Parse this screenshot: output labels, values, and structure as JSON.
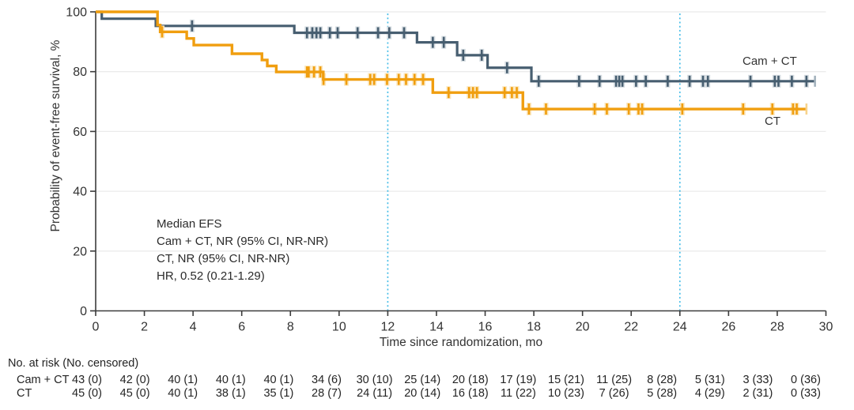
{
  "chart_data": {
    "type": "line",
    "subtype": "kaplan-meier-step",
    "title": "",
    "xlabel": "Time since randomization, mo",
    "ylabel": "Probability of event-free survival, %",
    "xlim": [
      0,
      30
    ],
    "ylim": [
      0,
      100
    ],
    "xticks": [
      0,
      2,
      4,
      6,
      8,
      10,
      12,
      14,
      16,
      18,
      20,
      22,
      24,
      26,
      28,
      30
    ],
    "yticks": [
      0,
      20,
      40,
      60,
      80,
      100
    ],
    "grid": "horizontal",
    "reference_lines_x": [
      12,
      24
    ],
    "colors": {
      "grid": "#ebebeb",
      "axis": "#3c3c3c",
      "text": "#333333",
      "reference": "#45bde8"
    },
    "series": [
      {
        "name": "Cam + CT",
        "color": "#475e70",
        "halo": "#d5dce1",
        "end_tick_color": "#a3b2bd",
        "line_width": 3.2,
        "steps": [
          [
            0,
            100
          ],
          [
            0.25,
            97.7
          ],
          [
            2.47,
            95.3
          ],
          [
            8.16,
            93.0
          ],
          [
            13.2,
            89.8
          ],
          [
            14.85,
            85.5
          ],
          [
            16.1,
            81.3
          ],
          [
            17.9,
            76.8
          ]
        ],
        "end_t": 29.55,
        "censor_t": [
          3.96,
          8.68,
          8.9,
          9.07,
          9.23,
          9.62,
          9.94,
          10.76,
          11.6,
          12.06,
          12.67,
          13.85,
          14.3,
          15.1,
          15.86,
          16.9,
          18.2,
          19.86,
          20.7,
          21.38,
          21.51,
          21.64,
          22.2,
          22.6,
          23.5,
          24.4,
          24.95,
          25.15,
          26.9,
          27.9,
          28.05,
          28.6,
          29.2
        ]
      },
      {
        "name": "CT",
        "color": "#f09e0f",
        "halo": "#fbe6bb",
        "end_tick_color": "#f7d38c",
        "line_width": 3.4,
        "steps": [
          [
            0,
            100
          ],
          [
            2.54,
            95.6
          ],
          [
            2.65,
            93.3
          ],
          [
            3.74,
            91.1
          ],
          [
            4.03,
            88.9
          ],
          [
            5.6,
            86.0
          ],
          [
            6.83,
            83.9
          ],
          [
            7.05,
            81.9
          ],
          [
            7.42,
            79.9
          ],
          [
            9.35,
            77.4
          ],
          [
            13.85,
            73.0
          ],
          [
            17.55,
            67.5
          ]
        ],
        "end_t": 29.2,
        "censor_t": [
          2.73,
          8.68,
          8.75,
          8.97,
          9.23,
          9.36,
          10.3,
          11.28,
          11.44,
          11.97,
          12.45,
          12.75,
          13.1,
          13.45,
          14.5,
          15.34,
          15.5,
          15.66,
          16.8,
          17.1,
          17.3,
          17.8,
          18.5,
          20.5,
          21.0,
          21.9,
          22.3,
          22.45,
          24.1,
          26.6,
          27.8,
          28.65,
          28.8
        ]
      }
    ],
    "annotation": {
      "lines": [
        "Median EFS",
        "Cam + CT, NR (95% CI, NR-NR)",
        "CT, NR (95% CI, NR-NR)",
        "HR, 0.52 (0.21-1.29)"
      ]
    }
  },
  "risk_table": {
    "header": "No. at risk (No. censored)",
    "rows": [
      {
        "label": "Cam + CT",
        "values": [
          "43 (0)",
          "42 (0)",
          "40 (1)",
          "40 (1)",
          "40 (1)",
          "34 (6)",
          "30 (10)",
          "25 (14)",
          "20 (18)",
          "17 (19)",
          "15 (21)",
          "11 (25)",
          "8 (28)",
          "5 (31)",
          "3 (33)",
          "0 (36)"
        ]
      },
      {
        "label": "CT",
        "values": [
          "45 (0)",
          "45 (0)",
          "40 (1)",
          "38 (1)",
          "35 (1)",
          "28 (7)",
          "24 (11)",
          "20 (14)",
          "16 (18)",
          "11 (22)",
          "10 (23)",
          "7 (26)",
          "5 (28)",
          "4 (29)",
          "2 (31)",
          "0 (33)"
        ]
      }
    ]
  }
}
